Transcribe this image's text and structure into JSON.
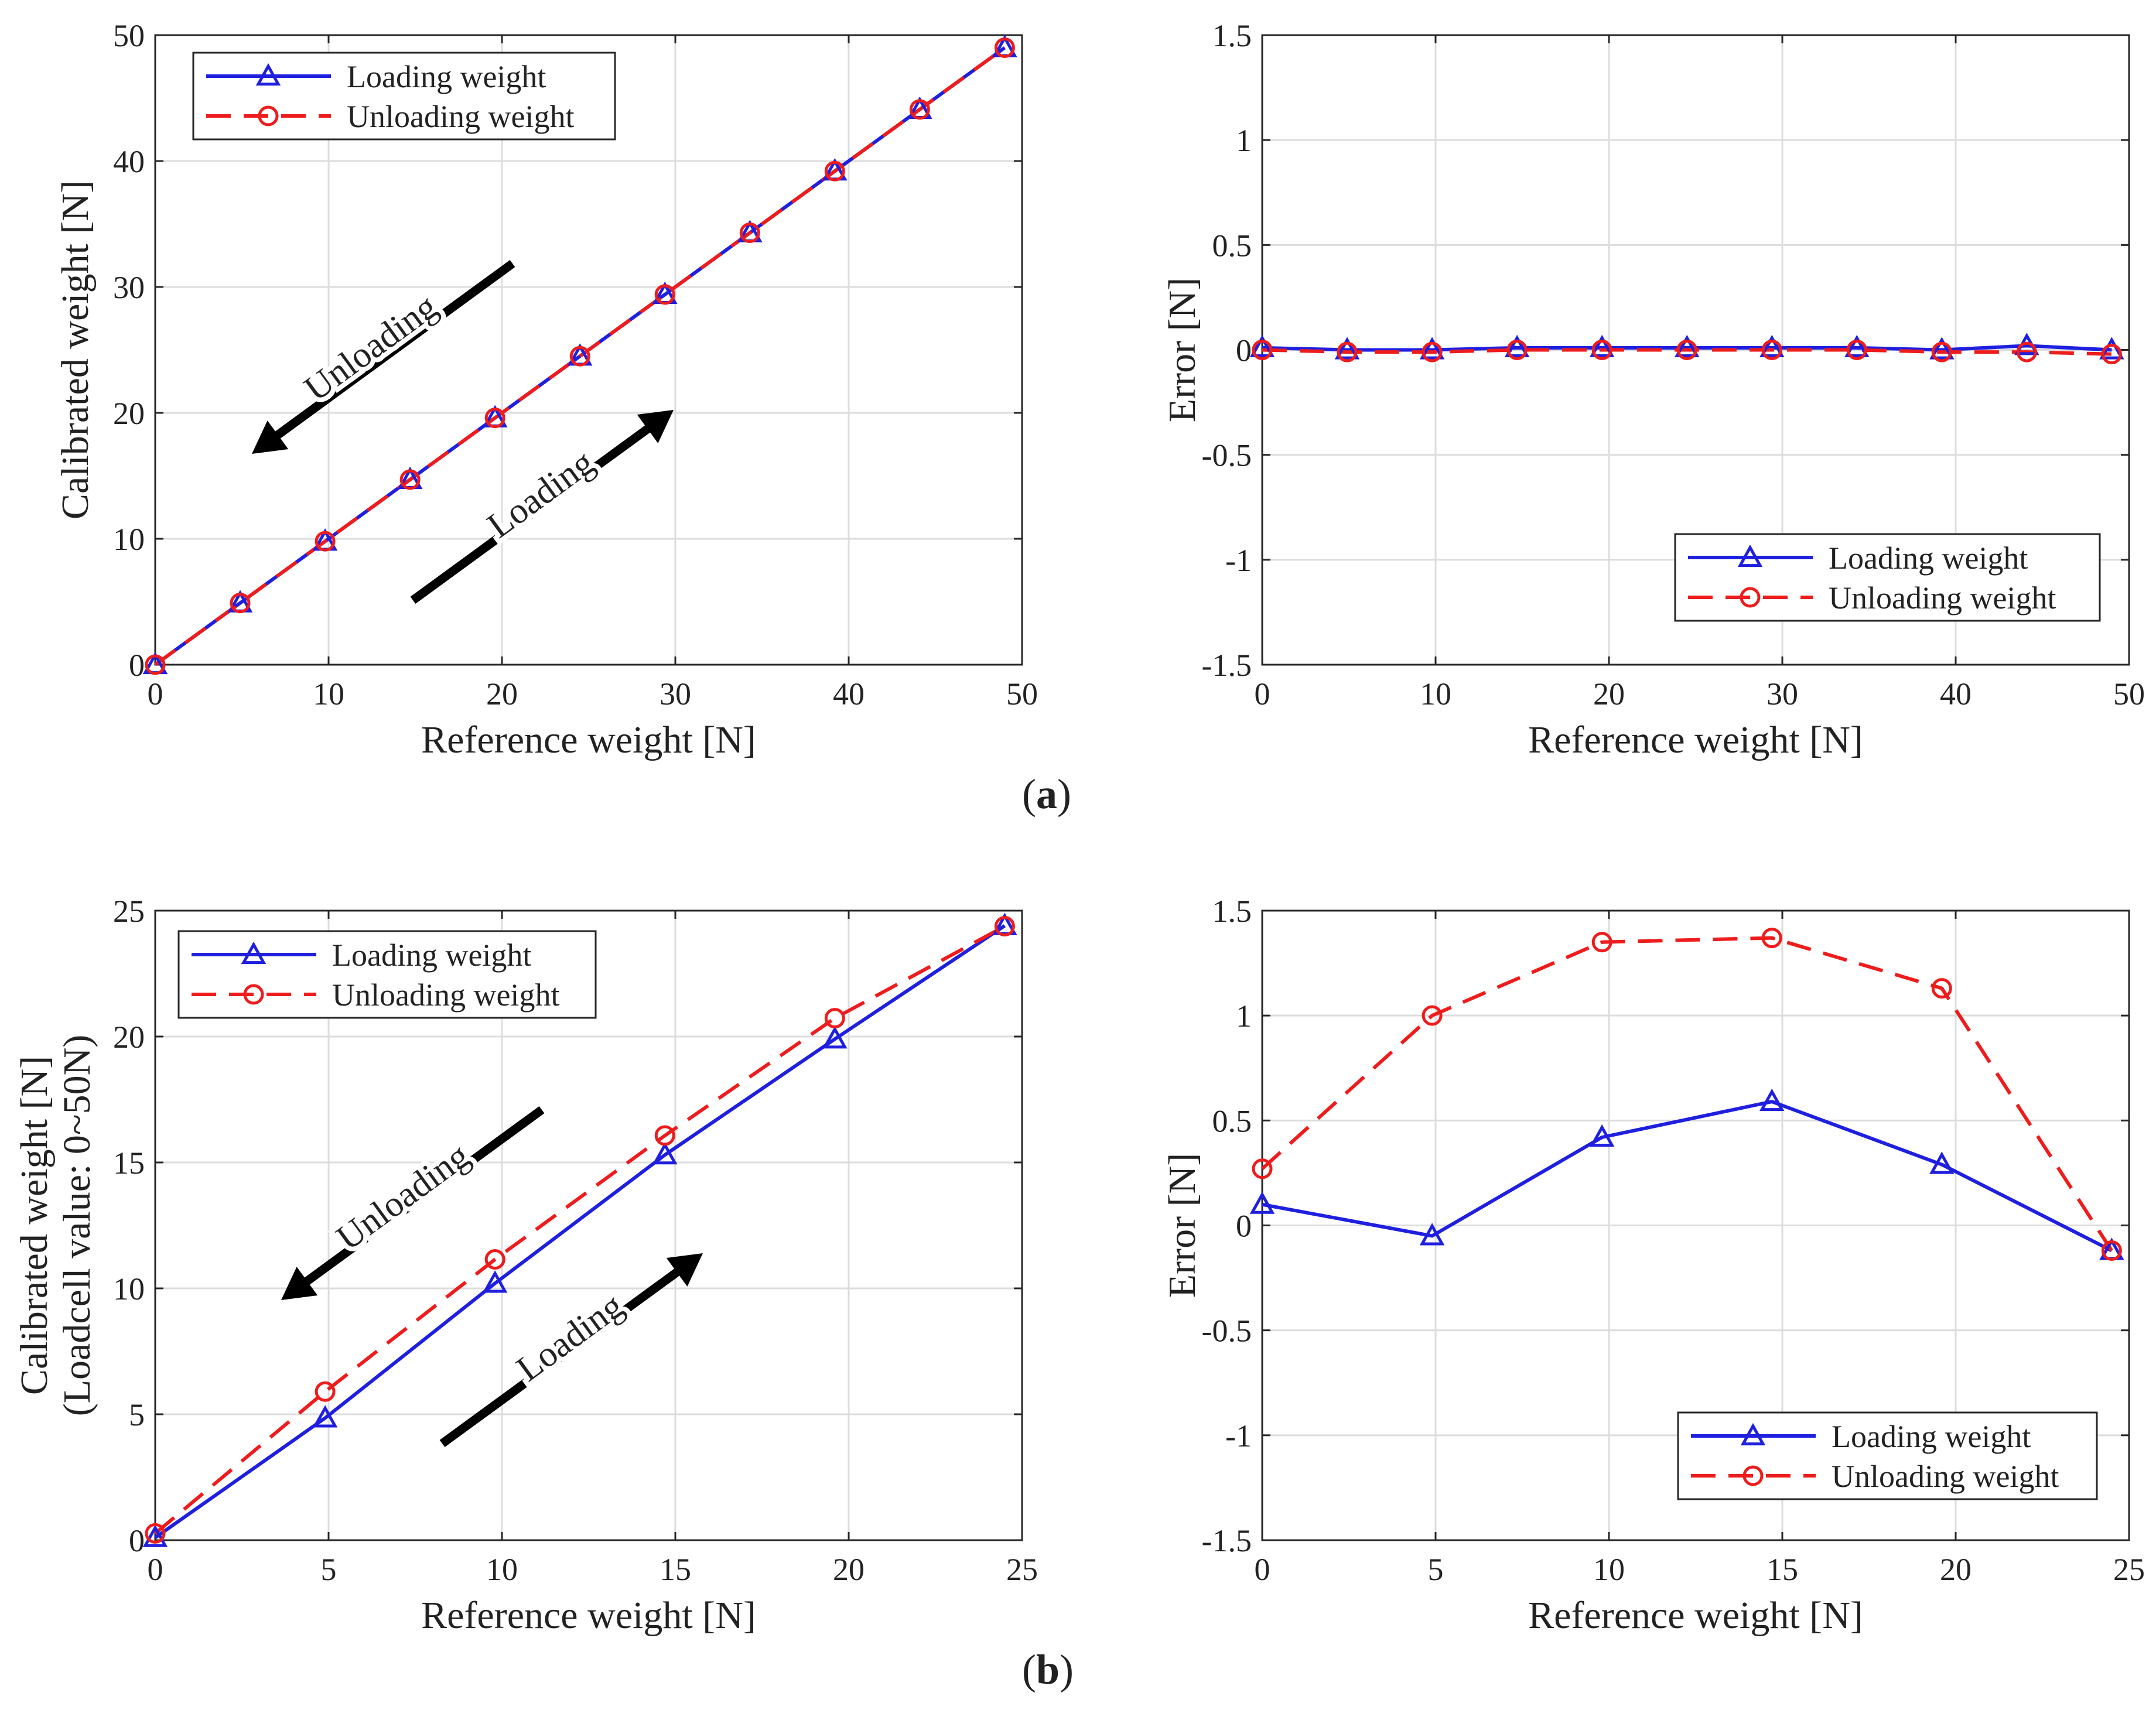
{
  "figure": {
    "label_a": "a",
    "label_b": "b",
    "colors": {
      "loading": "#1f1fdf",
      "unloading": "#ee1c1c",
      "grid": "#dcdcdc",
      "arrow": "#000000"
    }
  },
  "chart_data": [
    {
      "id": "a-left",
      "type": "line",
      "xlabel": "Reference weight [N]",
      "ylabel": "Calibrated weight [N]",
      "xlim": [
        0,
        50
      ],
      "ylim": [
        0,
        50
      ],
      "xticks": [
        0,
        10,
        20,
        30,
        40,
        50
      ],
      "yticks": [
        0,
        10,
        20,
        30,
        40,
        50
      ],
      "grid": true,
      "legend_position": "top-left",
      "series": [
        {
          "name": "Loading weight",
          "style": "solid",
          "marker": "triangle",
          "color": "#1f1fdf",
          "x": [
            0,
            4.9,
            9.8,
            14.7,
            19.6,
            24.5,
            29.4,
            34.3,
            39.2,
            44.1,
            49
          ],
          "y": [
            0,
            4.9,
            9.8,
            14.7,
            19.6,
            24.5,
            29.4,
            34.3,
            39.2,
            44.1,
            49
          ]
        },
        {
          "name": "Unloading weight",
          "style": "dashed",
          "marker": "circle",
          "color": "#ee1c1c",
          "x": [
            0,
            4.9,
            9.8,
            14.7,
            19.6,
            24.5,
            29.4,
            34.3,
            39.2,
            44.1,
            49
          ],
          "y": [
            0,
            4.9,
            9.8,
            14.7,
            19.6,
            24.5,
            29.4,
            34.3,
            39.2,
            44.1,
            49
          ]
        }
      ],
      "annotations": [
        {
          "text": "Unloading",
          "arrow": "down-left"
        },
        {
          "text": "Loading",
          "arrow": "up-right"
        }
      ]
    },
    {
      "id": "a-right",
      "type": "line",
      "xlabel": "Reference weight [N]",
      "ylabel": "Error [N]",
      "xlim": [
        0,
        50
      ],
      "ylim": [
        -1.5,
        1.5
      ],
      "xticks": [
        0,
        10,
        20,
        30,
        40,
        50
      ],
      "yticks": [
        1.5,
        1,
        0.5,
        0,
        -0.5,
        -1,
        -1.5
      ],
      "grid": true,
      "legend_position": "bottom-right",
      "series": [
        {
          "name": "Loading weight",
          "style": "solid",
          "marker": "triangle",
          "color": "#1f1fdf",
          "x": [
            0,
            4.9,
            9.8,
            14.7,
            19.6,
            24.5,
            29.4,
            34.3,
            39.2,
            44.1,
            49
          ],
          "y": [
            0.01,
            0.0,
            0.0,
            0.01,
            0.01,
            0.01,
            0.01,
            0.01,
            0.0,
            0.02,
            0.0
          ]
        },
        {
          "name": "Unloading weight",
          "style": "dashed",
          "marker": "circle",
          "color": "#ee1c1c",
          "x": [
            0,
            4.9,
            9.8,
            14.7,
            19.6,
            24.5,
            29.4,
            34.3,
            39.2,
            44.1,
            49
          ],
          "y": [
            0.0,
            -0.01,
            -0.01,
            0.0,
            0.0,
            0.0,
            0.0,
            0.0,
            -0.01,
            -0.01,
            -0.02
          ]
        }
      ]
    },
    {
      "id": "b-left",
      "type": "line",
      "xlabel": "Reference weight [N]",
      "ylabel": "Calibrated weight [N]",
      "ylabel2": "(Loadcell value: 0~50N)",
      "xlim": [
        0,
        25
      ],
      "ylim": [
        0,
        25
      ],
      "xticks": [
        0,
        5,
        10,
        15,
        20,
        25
      ],
      "yticks": [
        0,
        5,
        10,
        15,
        20,
        25
      ],
      "grid": true,
      "legend_position": "top-left",
      "series": [
        {
          "name": "Loading weight",
          "style": "solid",
          "marker": "triangle",
          "color": "#1f1fdf",
          "x": [
            0,
            4.9,
            9.8,
            14.7,
            19.6,
            24.5
          ],
          "y": [
            0.1,
            4.85,
            10.2,
            15.3,
            19.9,
            24.4
          ]
        },
        {
          "name": "Unloading weight",
          "style": "dashed",
          "marker": "circle",
          "color": "#ee1c1c",
          "x": [
            0,
            4.9,
            9.8,
            14.7,
            19.6,
            24.5
          ],
          "y": [
            0.27,
            5.9,
            11.15,
            16.07,
            20.73,
            24.38
          ]
        }
      ],
      "annotations": [
        {
          "text": "Unloading",
          "arrow": "down-left"
        },
        {
          "text": "Loading",
          "arrow": "up-right"
        }
      ]
    },
    {
      "id": "b-right",
      "type": "line",
      "xlabel": "Reference weight [N]",
      "ylabel": "Error [N]",
      "xlim": [
        0,
        25
      ],
      "ylim": [
        -1.5,
        1.5
      ],
      "xticks": [
        0,
        5,
        10,
        15,
        20,
        25
      ],
      "yticks": [
        1.5,
        1,
        0.5,
        0,
        -0.5,
        -1,
        -1.5
      ],
      "grid": true,
      "legend_position": "bottom-right",
      "series": [
        {
          "name": "Loading weight",
          "style": "solid",
          "marker": "triangle",
          "color": "#1f1fdf",
          "x": [
            0,
            4.9,
            9.8,
            14.7,
            19.6,
            24.5
          ],
          "y": [
            0.1,
            -0.05,
            0.42,
            0.59,
            0.29,
            -0.12
          ]
        },
        {
          "name": "Unloading weight",
          "style": "dashed",
          "marker": "circle",
          "color": "#ee1c1c",
          "x": [
            0,
            4.9,
            9.8,
            14.7,
            19.6,
            24.5
          ],
          "y": [
            0.27,
            1.0,
            1.35,
            1.37,
            1.13,
            -0.12
          ]
        }
      ]
    }
  ]
}
